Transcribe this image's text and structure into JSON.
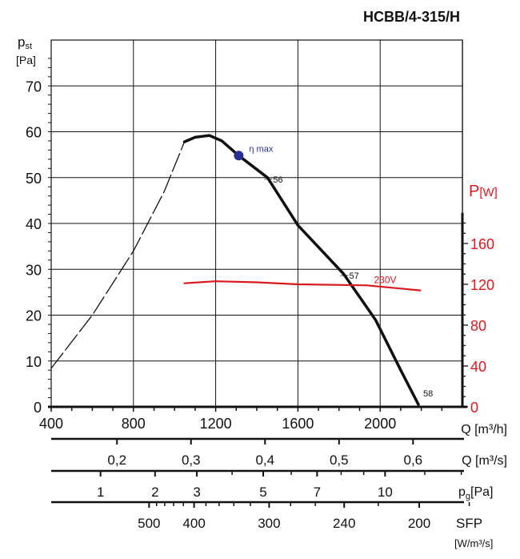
{
  "chart_data": {
    "type": "line",
    "title": "HCBB/4-315/H",
    "ylabel": "p",
    "ylabel_sub": "st",
    "ylabel_unit": "[Pa]",
    "y2label": "P",
    "y2label_unit": "[W]",
    "xlim": [
      400,
      2400
    ],
    "ylim": [
      0,
      80
    ],
    "y2lim": [
      0,
      240
    ],
    "grid": true,
    "x_ticks": [
      400,
      800,
      1200,
      1600,
      2000
    ],
    "x_label": "Q [m³/h]",
    "y_ticks": [
      0,
      10,
      20,
      30,
      40,
      50,
      60,
      70
    ],
    "y2_ticks": [
      0,
      40,
      80,
      120,
      160
    ],
    "colors": {
      "pressure": "#111111",
      "power": "#d71920",
      "eta": "#2b2f8f",
      "y2axis": "#d71920"
    },
    "series": [
      {
        "id": "pressure-unstable",
        "style": "dashed",
        "x": [
          400,
          600,
          800,
          950,
          1048
        ],
        "y": [
          8.4,
          20,
          34,
          47,
          57.8
        ]
      },
      {
        "id": "pressure",
        "style": "solid",
        "x": [
          1048,
          1100,
          1169,
          1230,
          1312,
          1452,
          1600,
          1822,
          1977,
          2100,
          2186
        ],
        "y": [
          57.8,
          58.8,
          59.2,
          58,
          54.8,
          50,
          39.6,
          29,
          19,
          8,
          0.5
        ]
      },
      {
        "id": "power",
        "name": "230V",
        "axis": "y2",
        "x": [
          1048,
          1200,
          1400,
          1600,
          1935,
          2195
        ],
        "y": [
          121,
          123,
          122,
          120,
          119,
          114
        ]
      }
    ],
    "annotations": [
      {
        "text": "η max",
        "x": 1312,
        "y": 54.8,
        "marker": true
      },
      {
        "text": "56",
        "x": 1452,
        "y": 50
      },
      {
        "text": "57",
        "x": 1822,
        "y": 29
      },
      {
        "text": "58",
        "x": 2186,
        "y": 0.5
      }
    ],
    "secondary_axes": [
      {
        "label": "Q [m³/s]",
        "ticks": [
          0.2,
          0.3,
          0.4,
          0.5,
          0.6
        ],
        "labels": [
          "0,2",
          "0,3",
          "0,4",
          "0,5",
          "0,6"
        ]
      },
      {
        "label": "p",
        "label_sub": "g",
        "label_unit": "[Pa]",
        "ticks": [
          1,
          2,
          3,
          5,
          7,
          10
        ],
        "labels": [
          "1",
          "2",
          "3",
          "5",
          "7",
          "10"
        ],
        "minor": [
          4,
          6,
          8,
          9,
          12,
          14
        ]
      },
      {
        "label": "SFP",
        "label_unit": "[W/m³/s]",
        "ticks": [
          500,
          400,
          300,
          240,
          200
        ],
        "labels": [
          "500",
          "400",
          "300",
          "240",
          "200"
        ],
        "minor": [
          480,
          460,
          440,
          420,
          380,
          360,
          340,
          320,
          280,
          260,
          220,
          180
        ]
      }
    ]
  }
}
